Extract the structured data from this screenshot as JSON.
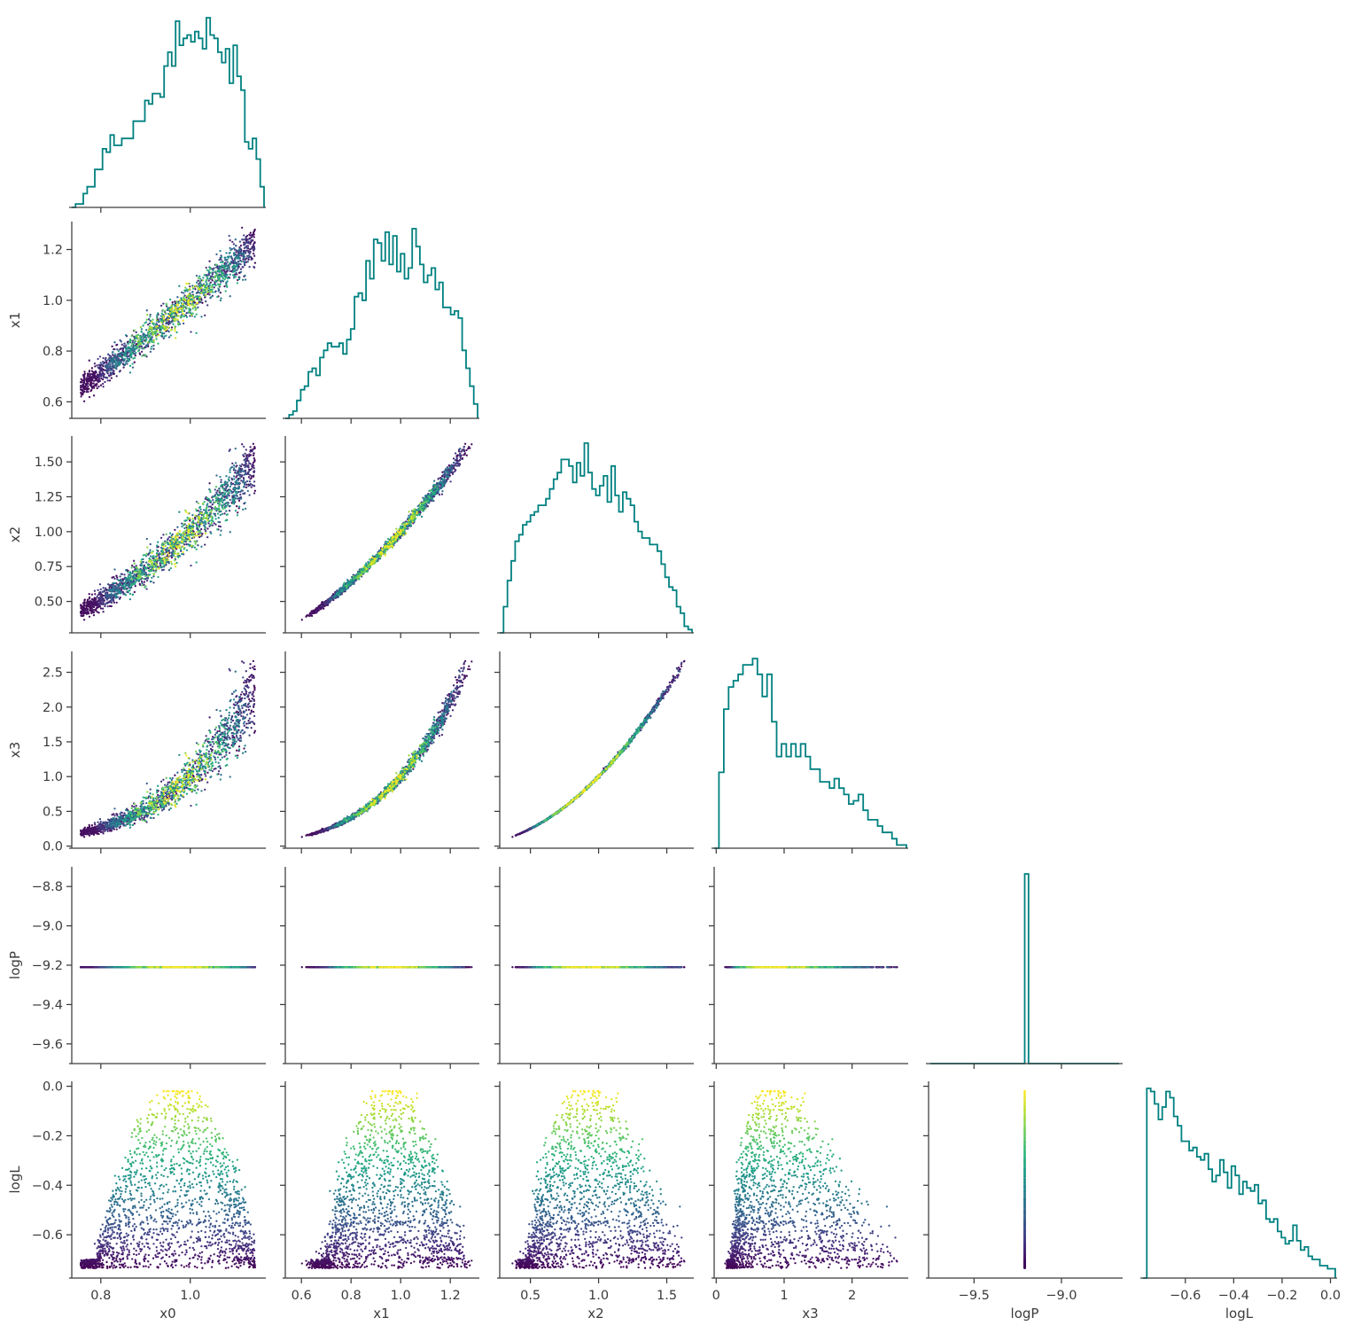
{
  "chart_data": {
    "type": "scatter",
    "variables": [
      {
        "name": "x0",
        "label": "x0",
        "range": [
          0.735,
          1.165
        ],
        "ticks": [
          0.8,
          1.0
        ],
        "tick_labels": [
          "0.8",
          "1.0"
        ]
      },
      {
        "name": "x1",
        "label": "x1",
        "range": [
          0.535,
          1.31
        ],
        "ticks": [
          0.6,
          0.8,
          1.0,
          1.2
        ],
        "tick_labels": [
          "0.6",
          "0.8",
          "1.0",
          "1.2"
        ]
      },
      {
        "name": "x2",
        "label": "x2",
        "range": [
          0.275,
          1.685
        ],
        "ticks": [
          0.5,
          0.75,
          1.0,
          1.25,
          1.5
        ],
        "tick_labels": [
          "0.50",
          "0.75",
          "1.00",
          "1.25",
          "1.50"
        ],
        "x_ticks": [
          0.5,
          1.0,
          1.5
        ],
        "x_tick_labels": [
          "0.5",
          "1.0",
          "1.5"
        ]
      },
      {
        "name": "x3",
        "label": "x3",
        "range": [
          -0.03,
          2.8
        ],
        "ticks": [
          0.0,
          0.5,
          1.0,
          1.5,
          2.0,
          2.5
        ],
        "tick_labels": [
          "0.0",
          "0.5",
          "1.0",
          "1.5",
          "2.0",
          "2.5"
        ],
        "x_ticks": [
          0,
          1,
          2
        ],
        "x_tick_labels": [
          "0",
          "1",
          "2"
        ]
      },
      {
        "name": "logP",
        "label": "logP",
        "range": [
          -9.7,
          -8.7
        ],
        "ticks": [
          -9.6,
          -9.4,
          -9.2,
          -9.0,
          -8.8
        ],
        "tick_labels": [
          "−9.6",
          "−9.4",
          "−9.2",
          "−9.0",
          "−8.8"
        ],
        "x_range": [
          -9.76,
          -8.66
        ],
        "x_ticks": [
          -9.5,
          -9.0
        ],
        "x_tick_labels": [
          "−9.5",
          "−9.0"
        ]
      },
      {
        "name": "logL",
        "label": "logL",
        "range": [
          -0.775,
          0.02
        ],
        "ticks": [
          -0.6,
          -0.4,
          -0.2,
          0.0
        ],
        "tick_labels": [
          "−0.6",
          "−0.4",
          "−0.2",
          "0.0"
        ]
      }
    ],
    "relations": {
      "x1": "x0^1.5",
      "x2": "x0^3",
      "x3": "x0^6",
      "logP": -9.21
    },
    "scatter_colormap": "viridis",
    "color_by": "logL",
    "histogram_color": "#008080",
    "histograms": {
      "x0": {
        "bins": 50,
        "counts": [
          0,
          1,
          1,
          4,
          6,
          6,
          11,
          11,
          17,
          16,
          21,
          18,
          18,
          20,
          20,
          20,
          25,
          25,
          25,
          31,
          30,
          33,
          33,
          32,
          41,
          45,
          41,
          54,
          47,
          49,
          50,
          48,
          51,
          49,
          46,
          55,
          50,
          49,
          45,
          42,
          46,
          36,
          47,
          38,
          34,
          19,
          17,
          20,
          14,
          6
        ]
      },
      "x1": {
        "bins": 50,
        "counts": [
          0,
          1,
          2,
          5,
          8,
          9,
          13,
          14,
          12,
          17,
          19,
          21,
          20,
          20,
          21,
          18,
          22,
          25,
          34,
          35,
          33,
          44,
          39,
          50,
          49,
          44,
          52,
          43,
          51,
          41,
          46,
          39,
          42,
          53,
          48,
          43,
          38,
          40,
          42,
          36,
          38,
          31,
          31,
          29,
          30,
          28,
          19,
          14,
          9,
          4
        ]
      },
      "x2": {
        "bins": 50,
        "counts": [
          0,
          8,
          16,
          22,
          28,
          30,
          33,
          34,
          36,
          37,
          39,
          39,
          41,
          44,
          47,
          49,
          53,
          53,
          51,
          46,
          52,
          48,
          58,
          49,
          44,
          42,
          45,
          48,
          40,
          51,
          42,
          37,
          43,
          41,
          39,
          34,
          31,
          29,
          29,
          27,
          27,
          25,
          21,
          17,
          14,
          13,
          8,
          6,
          2,
          1
        ]
      },
      "x3": {
        "bins": 40,
        "counts": [
          0,
          24,
          44,
          51,
          53,
          55,
          58,
          58,
          60,
          55,
          48,
          55,
          40,
          29,
          33,
          29,
          33,
          29,
          33,
          29,
          25,
          25,
          21,
          21,
          19,
          22,
          19,
          17,
          14,
          15,
          17,
          12,
          9,
          9,
          7,
          5,
          5,
          3,
          1,
          1
        ]
      },
      "logP": {
        "bins": 50,
        "counts": [
          0,
          0,
          0,
          0,
          0,
          0,
          0,
          0,
          0,
          0,
          0,
          0,
          0,
          0,
          0,
          0,
          0,
          0,
          0,
          0,
          0,
          0,
          0,
          0,
          0,
          2400,
          0,
          0,
          0,
          0,
          0,
          0,
          0,
          0,
          0,
          0,
          0,
          0,
          0,
          0,
          0,
          0,
          0,
          0,
          0,
          0,
          0,
          0,
          0,
          0
        ]
      },
      "logL": {
        "bins": 50,
        "counts": [
          0,
          61,
          60,
          56,
          51,
          55,
          60,
          58,
          52,
          49,
          44,
          44,
          41,
          42,
          39,
          38,
          40,
          35,
          31,
          33,
          38,
          34,
          29,
          36,
          33,
          27,
          31,
          29,
          28,
          30,
          24,
          25,
          19,
          18,
          19,
          15,
          13,
          11,
          12,
          17,
          12,
          9,
          10,
          7,
          6,
          6,
          4,
          4,
          3,
          3
        ]
      }
    }
  }
}
